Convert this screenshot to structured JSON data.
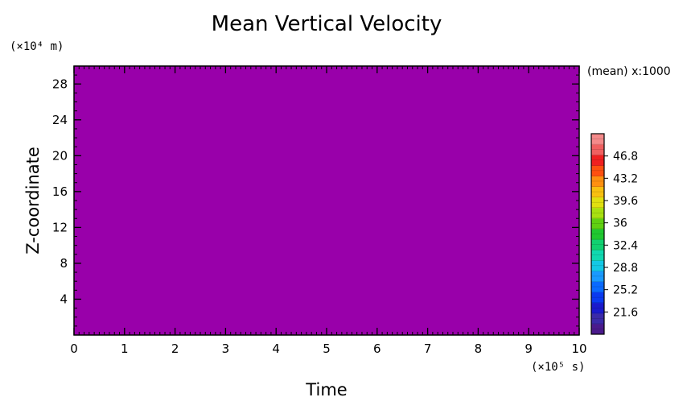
{
  "chart_data": {
    "type": "heatmap",
    "title": "Mean Vertical Velocity",
    "xlabel": "Time",
    "ylabel": "Z-coordinate",
    "x_unit_label": "(×10⁵ s)",
    "y_unit_label": "(×10⁴ m)",
    "xlim": [
      0,
      10
    ],
    "ylim": [
      0,
      30
    ],
    "x_ticks": [
      0,
      1,
      2,
      3,
      4,
      5,
      6,
      7,
      8,
      9,
      10
    ],
    "x_tick_labels": [
      "0",
      "1",
      "2",
      "3",
      "4",
      "5",
      "6",
      "7",
      "8",
      "9",
      "10"
    ],
    "y_ticks": [
      4,
      8,
      12,
      16,
      20,
      24,
      28
    ],
    "y_tick_labels": [
      "4",
      "8",
      "12",
      "16",
      "20",
      "24",
      "28"
    ],
    "fill_color": "#9900aa",
    "colorbar": {
      "scale_note": "(mean) x:1000",
      "range": [
        18,
        50.4
      ],
      "ticks": [
        21.6,
        25.2,
        28.8,
        32.4,
        36,
        39.6,
        43.2,
        46.8
      ],
      "tick_labels": [
        "21.6",
        "25.2",
        "28.8",
        "32.4",
        "36",
        "39.6",
        "43.2",
        "46.8"
      ],
      "colors": [
        "#4a1a8c",
        "#3a2aa8",
        "#1a1acc",
        "#0a3af0",
        "#0a6aff",
        "#1a9aff",
        "#14c8e6",
        "#10d8b0",
        "#10d070",
        "#20c830",
        "#60d010",
        "#a8e010",
        "#e0e010",
        "#f8c010",
        "#ff9010",
        "#ff5010",
        "#f02020",
        "#f06060",
        "#f48a8a"
      ]
    }
  }
}
